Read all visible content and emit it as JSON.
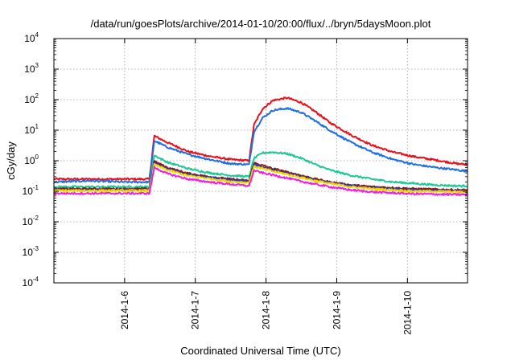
{
  "chart_data": {
    "type": "line",
    "title": "/data/run/goesPlots/archive/2014-01-10/20:00/flux/../bryn/5daysMoon.plot",
    "xlabel": "Coordinated Universal Time (UTC)",
    "ylabel": "cGy/day",
    "yscale": "log",
    "ylim": [
      0.0001,
      10000
    ],
    "xlim": [
      5.0,
      10.85
    ],
    "x_unit": "day of January 2014",
    "y_ticks": [
      {
        "base": "10",
        "exp": "-4"
      },
      {
        "base": "10",
        "exp": "-3"
      },
      {
        "base": "10",
        "exp": "-2"
      },
      {
        "base": "10",
        "exp": "-1"
      },
      {
        "base": "10",
        "exp": "0"
      },
      {
        "base": "10",
        "exp": "1"
      },
      {
        "base": "10",
        "exp": "2"
      },
      {
        "base": "10",
        "exp": "3"
      },
      {
        "base": "10",
        "exp": "4"
      }
    ],
    "x_tick_labels": [
      "2014-1-6",
      "2014-1-7",
      "2014-1-8",
      "2014-1-9",
      "2014-1-10"
    ],
    "x_tick_values": [
      6,
      7,
      8,
      9,
      10
    ],
    "grid": true,
    "series": [
      {
        "color": "#e8101a",
        "x": [
          5.0,
          5.5,
          6.0,
          6.35,
          6.42,
          6.6,
          6.9,
          7.2,
          7.5,
          7.76,
          7.83,
          7.95,
          8.1,
          8.3,
          8.5,
          8.7,
          8.9,
          9.2,
          9.5,
          9.8,
          10.1,
          10.4,
          10.7,
          10.85
        ],
        "y": [
          0.25,
          0.25,
          0.25,
          0.25,
          6.5,
          4.0,
          2.0,
          1.4,
          1.1,
          1.0,
          15,
          50,
          95,
          115,
          80,
          40,
          18,
          7,
          3.2,
          1.9,
          1.35,
          1.05,
          0.8,
          0.75
        ]
      },
      {
        "color": "#1f6fe0",
        "x": [
          5.0,
          5.5,
          6.0,
          6.35,
          6.42,
          6.6,
          6.9,
          7.2,
          7.5,
          7.76,
          7.83,
          7.95,
          8.1,
          8.3,
          8.5,
          8.7,
          8.9,
          9.2,
          9.5,
          9.8,
          10.1,
          10.4,
          10.7,
          10.85
        ],
        "y": [
          0.2,
          0.22,
          0.2,
          0.2,
          4.5,
          2.8,
          1.6,
          1.1,
          0.8,
          0.75,
          9,
          25,
          45,
          52,
          38,
          20,
          10,
          4,
          1.9,
          1.1,
          0.75,
          0.6,
          0.5,
          0.45
        ]
      },
      {
        "color": "#1fc896",
        "x": [
          5.0,
          5.5,
          6.0,
          6.35,
          6.42,
          6.6,
          6.9,
          7.2,
          7.5,
          7.76,
          7.83,
          7.95,
          8.1,
          8.3,
          8.5,
          8.7,
          8.9,
          9.2,
          9.5,
          9.8,
          10.1,
          10.4,
          10.7,
          10.85
        ],
        "y": [
          0.14,
          0.14,
          0.14,
          0.14,
          1.5,
          0.9,
          0.55,
          0.4,
          0.33,
          0.3,
          1.2,
          1.8,
          1.9,
          1.7,
          1.2,
          0.75,
          0.5,
          0.33,
          0.25,
          0.2,
          0.18,
          0.16,
          0.15,
          0.15
        ]
      },
      {
        "color": "#8a1818",
        "x": [
          5.0,
          5.5,
          6.0,
          6.35,
          6.42,
          6.6,
          6.9,
          7.2,
          7.5,
          7.76,
          7.83,
          7.95,
          8.1,
          8.3,
          8.5,
          8.7,
          8.9,
          9.2,
          9.5,
          9.8,
          10.1,
          10.4,
          10.7,
          10.85
        ],
        "y": [
          0.12,
          0.12,
          0.12,
          0.12,
          0.95,
          0.6,
          0.38,
          0.3,
          0.25,
          0.22,
          0.85,
          0.7,
          0.55,
          0.42,
          0.33,
          0.25,
          0.2,
          0.16,
          0.14,
          0.13,
          0.12,
          0.115,
          0.11,
          0.11
        ]
      },
      {
        "color": "#3a3a9a",
        "x": [
          5.0,
          5.5,
          6.0,
          6.35,
          6.42,
          6.6,
          6.9,
          7.2,
          7.5,
          7.76,
          7.83,
          7.95,
          8.1,
          8.3,
          8.5,
          8.7,
          8.9,
          9.2,
          9.5,
          9.8,
          10.1,
          10.4,
          10.7,
          10.85
        ],
        "y": [
          0.11,
          0.11,
          0.11,
          0.11,
          0.85,
          0.55,
          0.35,
          0.28,
          0.23,
          0.21,
          0.75,
          0.62,
          0.5,
          0.39,
          0.3,
          0.23,
          0.19,
          0.15,
          0.13,
          0.12,
          0.11,
          0.105,
          0.1,
          0.1
        ]
      },
      {
        "color": "#f0d800",
        "x": [
          5.0,
          5.5,
          6.0,
          6.35,
          6.42,
          6.6,
          6.9,
          7.2,
          7.5,
          7.76,
          7.83,
          7.95,
          8.1,
          8.3,
          8.5,
          8.7,
          8.9,
          9.2,
          9.5,
          9.8,
          10.1,
          10.4,
          10.7,
          10.85
        ],
        "y": [
          0.105,
          0.105,
          0.105,
          0.105,
          0.75,
          0.5,
          0.32,
          0.26,
          0.21,
          0.19,
          0.65,
          0.55,
          0.45,
          0.36,
          0.28,
          0.22,
          0.18,
          0.14,
          0.12,
          0.11,
          0.1,
          0.1,
          0.095,
          0.095
        ]
      },
      {
        "color": "#ee20e0",
        "x": [
          5.0,
          5.5,
          6.0,
          6.35,
          6.42,
          6.6,
          6.9,
          7.2,
          7.5,
          7.76,
          7.83,
          7.95,
          8.1,
          8.3,
          8.5,
          8.7,
          8.9,
          9.2,
          9.5,
          9.8,
          10.1,
          10.4,
          10.7,
          10.85
        ],
        "y": [
          0.085,
          0.085,
          0.085,
          0.085,
          0.6,
          0.38,
          0.25,
          0.2,
          0.17,
          0.15,
          0.48,
          0.4,
          0.34,
          0.27,
          0.21,
          0.17,
          0.14,
          0.11,
          0.095,
          0.088,
          0.082,
          0.08,
          0.078,
          0.078
        ]
      }
    ]
  }
}
